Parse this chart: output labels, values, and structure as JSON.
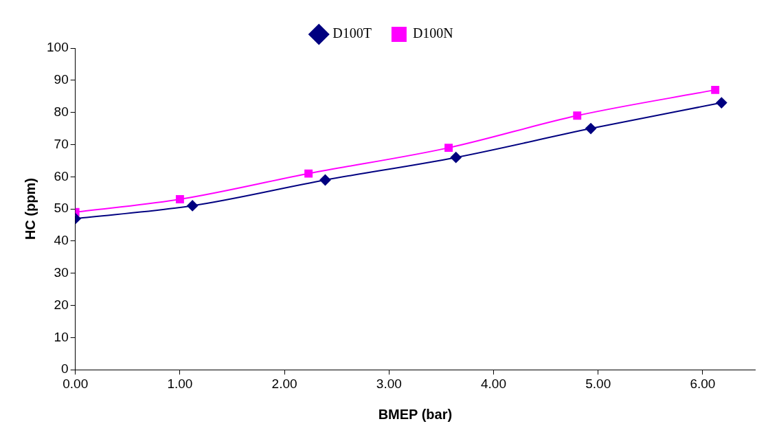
{
  "chart_data": {
    "type": "line",
    "xlabel": "BMEP (bar)",
    "ylabel": "HC (ppm)",
    "xlim": [
      0,
      6.5
    ],
    "xticks": [
      {
        "value": 0,
        "label": "0.00"
      },
      {
        "value": 1,
        "label": "1.00"
      },
      {
        "value": 2,
        "label": "2.00"
      },
      {
        "value": 3,
        "label": "3.00"
      },
      {
        "value": 4,
        "label": "4.00"
      },
      {
        "value": 5,
        "label": "5.00"
      },
      {
        "value": 6,
        "label": "6.00"
      }
    ],
    "ylim": [
      0,
      100
    ],
    "yticks": [
      0,
      10,
      20,
      30,
      40,
      50,
      60,
      70,
      80,
      90,
      100
    ],
    "grid": false,
    "legend": "top",
    "series": [
      {
        "name": "D100T",
        "color": "#000080",
        "marker": "diamond",
        "x": [
          0,
          1.12,
          2.39,
          3.64,
          4.93,
          6.18
        ],
        "values": [
          47,
          51,
          59,
          66,
          75,
          83
        ]
      },
      {
        "name": "D100N",
        "color": "#ff00ff",
        "marker": "square",
        "x": [
          0,
          1.0,
          2.23,
          3.57,
          4.8,
          6.12
        ],
        "values": [
          49,
          53,
          61,
          69,
          79,
          87
        ]
      }
    ]
  }
}
